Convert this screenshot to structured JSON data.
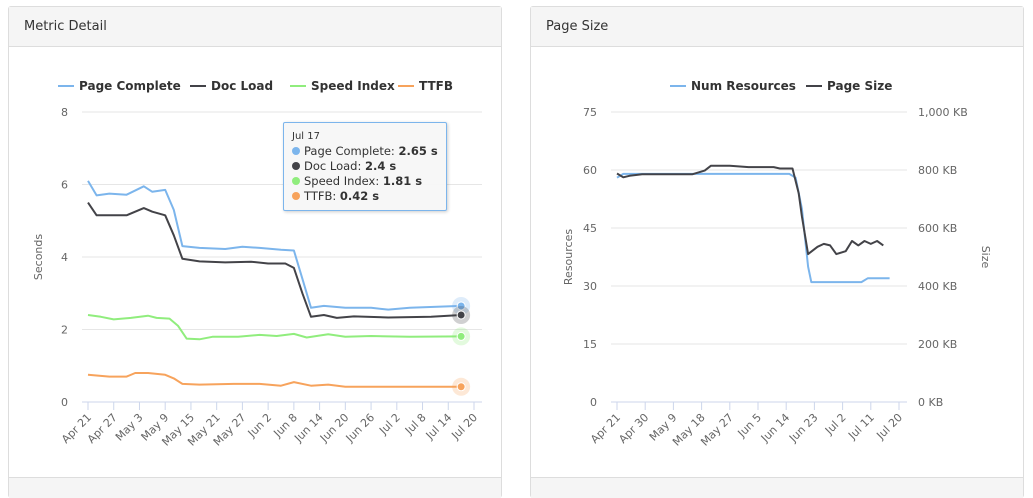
{
  "panels": [
    {
      "title": "Metric Detail"
    },
    {
      "title": "Page Size"
    }
  ],
  "colors": {
    "page_complete": "#7cb5ec",
    "doc_load": "#434348",
    "speed_index": "#90ed7d",
    "ttfb": "#f7a35c"
  },
  "tooltip": {
    "date": "Jul 17",
    "rows": [
      {
        "label": "Page Complete: ",
        "value": "2.65 s"
      },
      {
        "label": "Doc Load: ",
        "value": "2.4 s"
      },
      {
        "label": "Speed Index: ",
        "value": "1.81 s"
      },
      {
        "label": "TTFB: ",
        "value": "0.42 s"
      }
    ]
  },
  "chart_data": [
    {
      "type": "line",
      "title": "Metric Detail",
      "ylabel": "Seconds",
      "ylim": [
        0,
        8
      ],
      "yticks": [
        "0",
        "2",
        "4",
        "6",
        "8"
      ],
      "x_unit": "days since Apr 21",
      "xlim": [
        0,
        90
      ],
      "xticks": [
        "Apr 21",
        "Apr 27",
        "May 3",
        "May 9",
        "May 15",
        "May 21",
        "May 27",
        "Jun 2",
        "Jun 8",
        "Jun 14",
        "Jun 20",
        "Jun 26",
        "Jul 2",
        "Jul 8",
        "Jul 14",
        "Jul 20"
      ],
      "series": [
        {
          "name": "Page Complete",
          "color": "#7cb5ec",
          "points": [
            [
              0,
              6.1
            ],
            [
              2,
              5.7
            ],
            [
              5,
              5.75
            ],
            [
              9,
              5.72
            ],
            [
              13,
              5.95
            ],
            [
              15,
              5.8
            ],
            [
              18,
              5.85
            ],
            [
              20,
              5.3
            ],
            [
              22,
              4.3
            ],
            [
              26,
              4.25
            ],
            [
              32,
              4.22
            ],
            [
              36,
              4.28
            ],
            [
              40,
              4.25
            ],
            [
              45,
              4.2
            ],
            [
              48,
              4.18
            ],
            [
              50,
              3.4
            ],
            [
              52,
              2.6
            ],
            [
              55,
              2.65
            ],
            [
              60,
              2.6
            ],
            [
              66,
              2.6
            ],
            [
              70,
              2.55
            ],
            [
              75,
              2.6
            ],
            [
              87,
              2.65
            ]
          ]
        },
        {
          "name": "Doc Load",
          "color": "#434348",
          "points": [
            [
              0,
              5.5
            ],
            [
              2,
              5.15
            ],
            [
              5,
              5.15
            ],
            [
              9,
              5.15
            ],
            [
              13,
              5.35
            ],
            [
              15,
              5.25
            ],
            [
              18,
              5.15
            ],
            [
              20,
              4.6
            ],
            [
              22,
              3.95
            ],
            [
              26,
              3.88
            ],
            [
              32,
              3.85
            ],
            [
              38,
              3.87
            ],
            [
              42,
              3.82
            ],
            [
              46,
              3.82
            ],
            [
              48,
              3.7
            ],
            [
              50,
              3.0
            ],
            [
              52,
              2.35
            ],
            [
              55,
              2.4
            ],
            [
              58,
              2.32
            ],
            [
              62,
              2.36
            ],
            [
              70,
              2.33
            ],
            [
              80,
              2.35
            ],
            [
              87,
              2.4
            ]
          ]
        },
        {
          "name": "Speed Index",
          "color": "#90ed7d",
          "points": [
            [
              0,
              2.4
            ],
            [
              3,
              2.35
            ],
            [
              6,
              2.28
            ],
            [
              10,
              2.32
            ],
            [
              14,
              2.38
            ],
            [
              16,
              2.32
            ],
            [
              19,
              2.3
            ],
            [
              21,
              2.1
            ],
            [
              23,
              1.75
            ],
            [
              26,
              1.73
            ],
            [
              29,
              1.8
            ],
            [
              35,
              1.8
            ],
            [
              40,
              1.85
            ],
            [
              44,
              1.82
            ],
            [
              48,
              1.88
            ],
            [
              51,
              1.78
            ],
            [
              56,
              1.87
            ],
            [
              60,
              1.8
            ],
            [
              66,
              1.82
            ],
            [
              75,
              1.8
            ],
            [
              87,
              1.81
            ]
          ]
        },
        {
          "name": "TTFB",
          "color": "#f7a35c",
          "points": [
            [
              0,
              0.75
            ],
            [
              5,
              0.7
            ],
            [
              9,
              0.7
            ],
            [
              11,
              0.8
            ],
            [
              14,
              0.8
            ],
            [
              18,
              0.75
            ],
            [
              20,
              0.65
            ],
            [
              22,
              0.5
            ],
            [
              26,
              0.48
            ],
            [
              34,
              0.5
            ],
            [
              40,
              0.5
            ],
            [
              45,
              0.45
            ],
            [
              48,
              0.55
            ],
            [
              52,
              0.45
            ],
            [
              56,
              0.48
            ],
            [
              60,
              0.42
            ],
            [
              72,
              0.42
            ],
            [
              80,
              0.42
            ],
            [
              87,
              0.42
            ]
          ]
        }
      ]
    },
    {
      "type": "line",
      "title": "Page Size",
      "ylabel": "Resources",
      "y2label": "Size",
      "ylim": [
        0,
        75
      ],
      "y2lim": [
        0,
        1000
      ],
      "yticks": [
        "0",
        "15",
        "30",
        "45",
        "60",
        "75"
      ],
      "y2ticks": [
        "0 KB",
        "200 KB",
        "400 KB",
        "600 KB",
        "800 KB",
        "1,000 KB"
      ],
      "x_unit": "days since Apr 21",
      "xlim": [
        0,
        90
      ],
      "xticks": [
        "Apr 21",
        "Apr 30",
        "May 9",
        "May 18",
        "May 27",
        "Jun 5",
        "Jun 14",
        "Jun 23",
        "Jul 2",
        "Jul 11",
        "Jul 20"
      ],
      "series": [
        {
          "name": "Num Resources",
          "axis": "left",
          "color": "#7cb5ec",
          "points": [
            [
              0,
              58
            ],
            [
              2,
              59
            ],
            [
              10,
              59
            ],
            [
              30,
              59
            ],
            [
              55,
              59
            ],
            [
              57,
              58
            ],
            [
              59,
              50
            ],
            [
              61,
              35
            ],
            [
              62,
              31
            ],
            [
              65,
              31
            ],
            [
              75,
              31
            ],
            [
              78,
              31
            ],
            [
              80,
              32
            ],
            [
              87,
              32
            ]
          ]
        },
        {
          "name": "Page Size",
          "axis": "right",
          "color": "#434348",
          "points": [
            [
              0,
              788
            ],
            [
              2,
              775
            ],
            [
              4,
              780
            ],
            [
              8,
              785
            ],
            [
              14,
              785
            ],
            [
              24,
              785
            ],
            [
              28,
              798
            ],
            [
              30,
              815
            ],
            [
              36,
              815
            ],
            [
              42,
              810
            ],
            [
              50,
              810
            ],
            [
              52,
              805
            ],
            [
              56,
              805
            ],
            [
              58,
              720
            ],
            [
              59,
              640
            ],
            [
              61,
              510
            ],
            [
              64,
              535
            ],
            [
              66,
              545
            ],
            [
              68,
              540
            ],
            [
              70,
              510
            ],
            [
              73,
              520
            ],
            [
              75,
              555
            ],
            [
              77,
              540
            ],
            [
              79,
              555
            ],
            [
              81,
              545
            ],
            [
              83,
              555
            ],
            [
              85,
              540
            ]
          ]
        }
      ]
    }
  ]
}
